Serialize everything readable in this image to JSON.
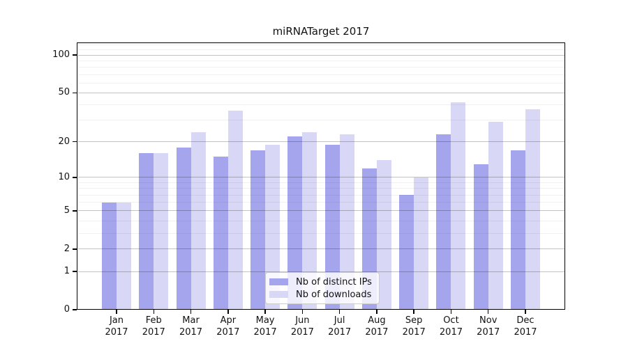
{
  "title": "miRNATarget 2017",
  "chart_data": {
    "type": "bar",
    "title": "miRNATarget 2017",
    "yscale": "log1p",
    "ylim": [
      0,
      126
    ],
    "grid": true,
    "legend_position": "lower center inside",
    "categories": [
      "Jan 2017",
      "Feb 2017",
      "Mar 2017",
      "Apr 2017",
      "May 2017",
      "Jun 2017",
      "Jul 2017",
      "Aug 2017",
      "Sep 2017",
      "Oct 2017",
      "Nov 2017",
      "Dec 2017"
    ],
    "series": [
      {
        "name": "Nb of distinct IPs",
        "color": "#a5a5ee",
        "values": [
          6,
          16,
          18,
          15,
          17,
          22,
          19,
          12,
          7,
          23,
          13,
          17
        ]
      },
      {
        "name": "Nb of downloads",
        "color": "#d8d8f6",
        "values": [
          6,
          16,
          24,
          36,
          19,
          24,
          23,
          14,
          10,
          42,
          29,
          37
        ]
      }
    ],
    "yticks_major": [
      0,
      1,
      2,
      5,
      10,
      20,
      50,
      100
    ],
    "yticks_minor": [
      3,
      4,
      6,
      7,
      8,
      9,
      30,
      40,
      60,
      70,
      80,
      90,
      110,
      120
    ],
    "xlabel": "",
    "ylabel": ""
  },
  "colors": {
    "background": "#ffffff",
    "axis": "#000000",
    "text": "#111111",
    "grid_major": "rgba(0,0,0,0.24)",
    "grid_minor": "rgba(0,0,0,0.06)",
    "legend_border": "#cccccc",
    "series_ips": "#a5a5ee",
    "series_downloads": "#d8d8f6"
  }
}
